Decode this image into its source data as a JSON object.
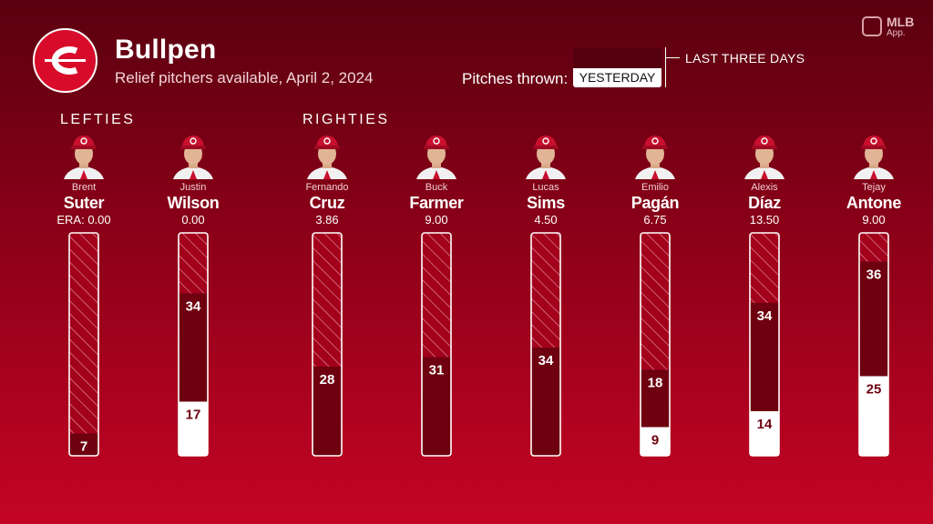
{
  "header": {
    "title": "Bullpen",
    "subtitle": "Relief pitchers available, April 2, 2024"
  },
  "branding": {
    "team_logo": "reds-c-logo",
    "mlb_app_line1": "MLB",
    "mlb_app_line2": "App."
  },
  "legend": {
    "label": "Pitches thrown:",
    "yesterday": "YESTERDAY",
    "last_three_days": "LAST THREE DAYS"
  },
  "groups": {
    "lefties": "LEFTIES",
    "righties": "RIGHTIES"
  },
  "colors": {
    "background_top": "#5a0010",
    "background_bottom": "#c40424",
    "last_three_days_fill": "#6e000f",
    "yesterday_fill": "#ffffff",
    "bar_outline": "#ffffff",
    "cap": "#c8102e"
  },
  "chart_data": {
    "type": "bar",
    "stacked": true,
    "orientation": "vertical",
    "ylim": [
      0,
      70
    ],
    "categories": [
      "Brent Suter",
      "Justin Wilson",
      "Fernando Cruz",
      "Buck Farmer",
      "Lucas Sims",
      "Emilio Pagán",
      "Alexis Díaz",
      "Tejay Antone"
    ],
    "players": [
      {
        "first": "Brent",
        "last": "Suter",
        "era": "ERA: 0.00",
        "group": "lefties",
        "last_three_days": 7,
        "yesterday": 0
      },
      {
        "first": "Justin",
        "last": "Wilson",
        "era": "0.00",
        "group": "lefties",
        "last_three_days": 34,
        "yesterday": 17
      },
      {
        "first": "Fernando",
        "last": "Cruz",
        "era": "3.86",
        "group": "righties",
        "last_three_days": 28,
        "yesterday": 0
      },
      {
        "first": "Buck",
        "last": "Farmer",
        "era": "9.00",
        "group": "righties",
        "last_three_days": 31,
        "yesterday": 0
      },
      {
        "first": "Lucas",
        "last": "Sims",
        "era": "4.50",
        "group": "righties",
        "last_three_days": 34,
        "yesterday": 0
      },
      {
        "first": "Emilio",
        "last": "Pagán",
        "era": "6.75",
        "group": "righties",
        "last_three_days": 18,
        "yesterday": 9
      },
      {
        "first": "Alexis",
        "last": "Díaz",
        "era": "13.50",
        "group": "righties",
        "last_three_days": 34,
        "yesterday": 14
      },
      {
        "first": "Tejay",
        "last": "Antone",
        "era": "9.00",
        "group": "righties",
        "last_three_days": 36,
        "yesterday": 25
      }
    ]
  }
}
